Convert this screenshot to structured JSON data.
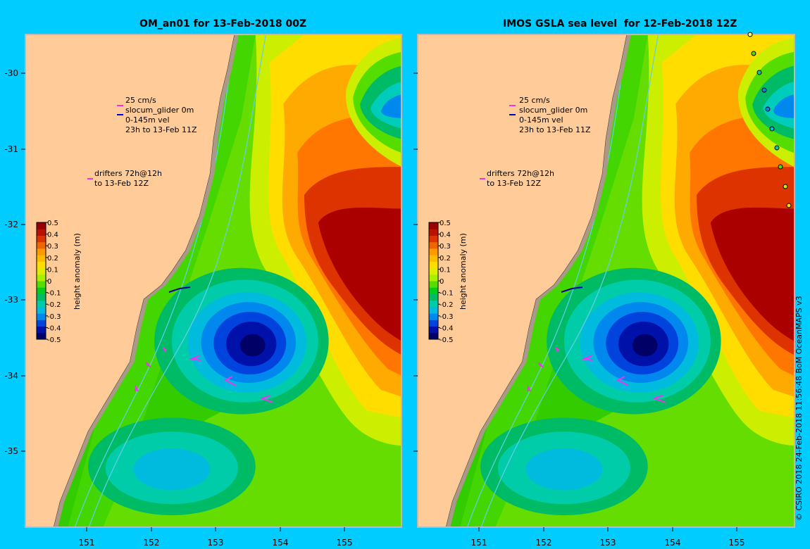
{
  "panels": [
    {
      "title": "OM_an01 for 13-Feb-2018 00Z",
      "legend_vel": [
        "25 cm/s",
        "slocum_glider 0m",
        "0-145m vel",
        "23h to 13-Feb 11Z"
      ],
      "legend_drift": [
        "drifters 72h@12h",
        "to 13-Feb 12Z"
      ]
    },
    {
      "title": "IMOS GSLA sea level  for 12-Feb-2018 12Z",
      "legend_vel": [
        "25 cm/s",
        "slocum_glider 0m",
        "0-145m vel",
        "23h to 13-Feb 11Z"
      ],
      "legend_drift": [
        "drifters 72h@12h",
        "to 13-Feb 12Z"
      ]
    }
  ],
  "axes": {
    "x_ticks": [
      "151",
      "152",
      "153",
      "154",
      "155"
    ],
    "y_ticks": [
      "-30",
      "-31",
      "-32",
      "-33",
      "-34",
      "-35"
    ]
  },
  "colorbar": {
    "label": "height anomaly (m)",
    "ticks": [
      "0.5",
      "0.4",
      "0.3",
      "0.2",
      "0.1",
      "0",
      "-0.1",
      "-0.2",
      "-0.3",
      "-0.4",
      "-0.5"
    ],
    "colors": [
      "#000066",
      "#0011aa",
      "#0044dd",
      "#0088ee",
      "#00bbdd",
      "#00ccaa",
      "#00bb66",
      "#00cc22",
      "#55dd00",
      "#aaee00",
      "#ddee00",
      "#ffdd00",
      "#ffbb00",
      "#ff9900",
      "#ee6600",
      "#dd3300",
      "#bb1100",
      "#990000"
    ]
  },
  "credit": "© CSIRO 2018    24-Feb-2018 11:56:48 BoM OceanMAPS v3",
  "colors": {
    "background": "#00ccff",
    "land": "#ffcc99",
    "frame": "#bbbbbb"
  }
}
